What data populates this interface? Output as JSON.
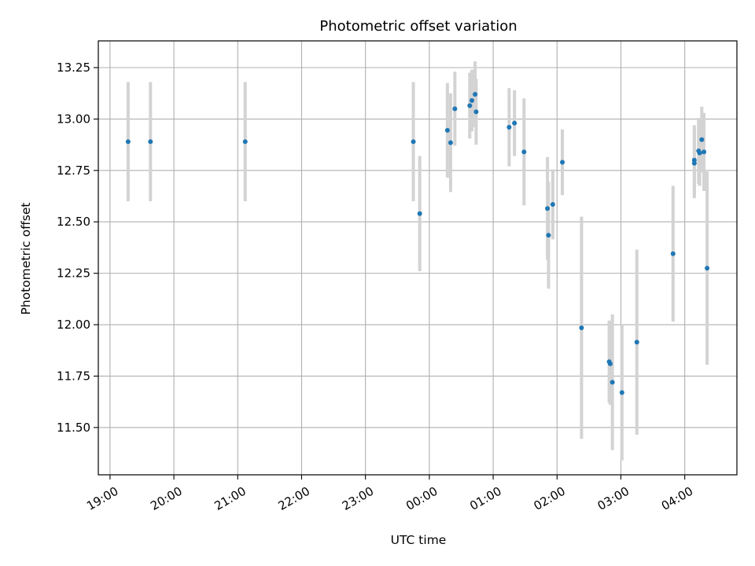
{
  "chart_data": {
    "type": "scatter",
    "title": "Photometric offset variation",
    "xlabel": "UTC time",
    "ylabel": "Photometric offset",
    "xlim": [
      "18:49",
      "04:49"
    ],
    "ylim": [
      11.27,
      13.38
    ],
    "grid": true,
    "x_ticks": [
      "19:00",
      "20:00",
      "21:00",
      "22:00",
      "23:00",
      "00:00",
      "01:00",
      "02:00",
      "03:00",
      "04:00"
    ],
    "y_ticks": [
      "11.50",
      "11.75",
      "12.00",
      "12.25",
      "12.50",
      "12.75",
      "13.00",
      "13.25"
    ],
    "colors": {
      "points": "#1f77b4",
      "errorbars": "#d3d3d3",
      "grid": "#b0b0b0"
    },
    "series": [
      {
        "points": [
          {
            "t": "19:17",
            "y": 12.89,
            "err": 0.29
          },
          {
            "t": "19:38",
            "y": 12.89,
            "err": 0.29
          },
          {
            "t": "21:07",
            "y": 12.89,
            "err": 0.29
          },
          {
            "t": "23:45",
            "y": 12.89,
            "err": 0.29
          },
          {
            "t": "23:51",
            "y": 12.54,
            "err": 0.28
          },
          {
            "t": "00:17",
            "y": 12.945,
            "err": 0.23
          },
          {
            "t": "00:20",
            "y": 12.885,
            "err": 0.24
          },
          {
            "t": "00:24",
            "y": 13.05,
            "err": 0.18
          },
          {
            "t": "00:38",
            "y": 13.065,
            "err": 0.16
          },
          {
            "t": "00:40",
            "y": 13.09,
            "err": 0.15
          },
          {
            "t": "00:43",
            "y": 13.12,
            "err": 0.16
          },
          {
            "t": "00:44",
            "y": 13.035,
            "err": 0.16
          },
          {
            "t": "01:15",
            "y": 12.96,
            "err": 0.19
          },
          {
            "t": "01:20",
            "y": 12.98,
            "err": 0.16
          },
          {
            "t": "01:29",
            "y": 12.84,
            "err": 0.26
          },
          {
            "t": "01:51",
            "y": 12.565,
            "err": 0.25
          },
          {
            "t": "01:52",
            "y": 12.435,
            "err": 0.26
          },
          {
            "t": "01:56",
            "y": 12.585,
            "err": 0.17
          },
          {
            "t": "02:05",
            "y": 12.79,
            "err": 0.16
          },
          {
            "t": "02:23",
            "y": 11.985,
            "err": 0.54
          },
          {
            "t": "02:49",
            "y": 11.82,
            "err": 0.2
          },
          {
            "t": "02:50",
            "y": 11.81,
            "err": 0.2
          },
          {
            "t": "02:52",
            "y": 11.72,
            "err": 0.33
          },
          {
            "t": "03:01",
            "y": 11.67,
            "err": 0.33
          },
          {
            "t": "03:15",
            "y": 11.915,
            "err": 0.45
          },
          {
            "t": "03:49",
            "y": 12.345,
            "err": 0.33
          },
          {
            "t": "04:09",
            "y": 12.8,
            "err": 0.17
          },
          {
            "t": "04:09",
            "y": 12.785,
            "err": 0.17
          },
          {
            "t": "04:13",
            "y": 12.845,
            "err": 0.16
          },
          {
            "t": "04:14",
            "y": 12.835,
            "err": 0.16
          },
          {
            "t": "04:16",
            "y": 12.9,
            "err": 0.16
          },
          {
            "t": "04:18",
            "y": 12.84,
            "err": 0.19
          },
          {
            "t": "04:21",
            "y": 12.275,
            "err": 0.47
          }
        ]
      }
    ]
  }
}
